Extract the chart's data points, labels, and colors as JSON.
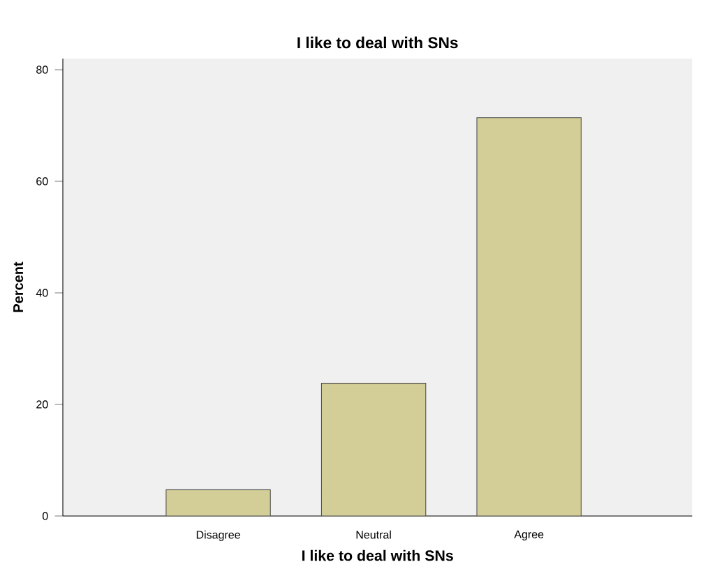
{
  "chart_data": {
    "type": "bar",
    "title": "I like to deal with SNs",
    "xlabel": "I like to deal with SNs",
    "ylabel": "Percent",
    "categories": [
      "Disagree",
      "Neutral",
      "Agree"
    ],
    "values": [
      4.7,
      23.8,
      71.4
    ],
    "color": "#d3ce97",
    "ylim": [
      0,
      82
    ],
    "yticks": [
      0,
      20,
      40,
      60,
      80
    ],
    "grid": false
  }
}
